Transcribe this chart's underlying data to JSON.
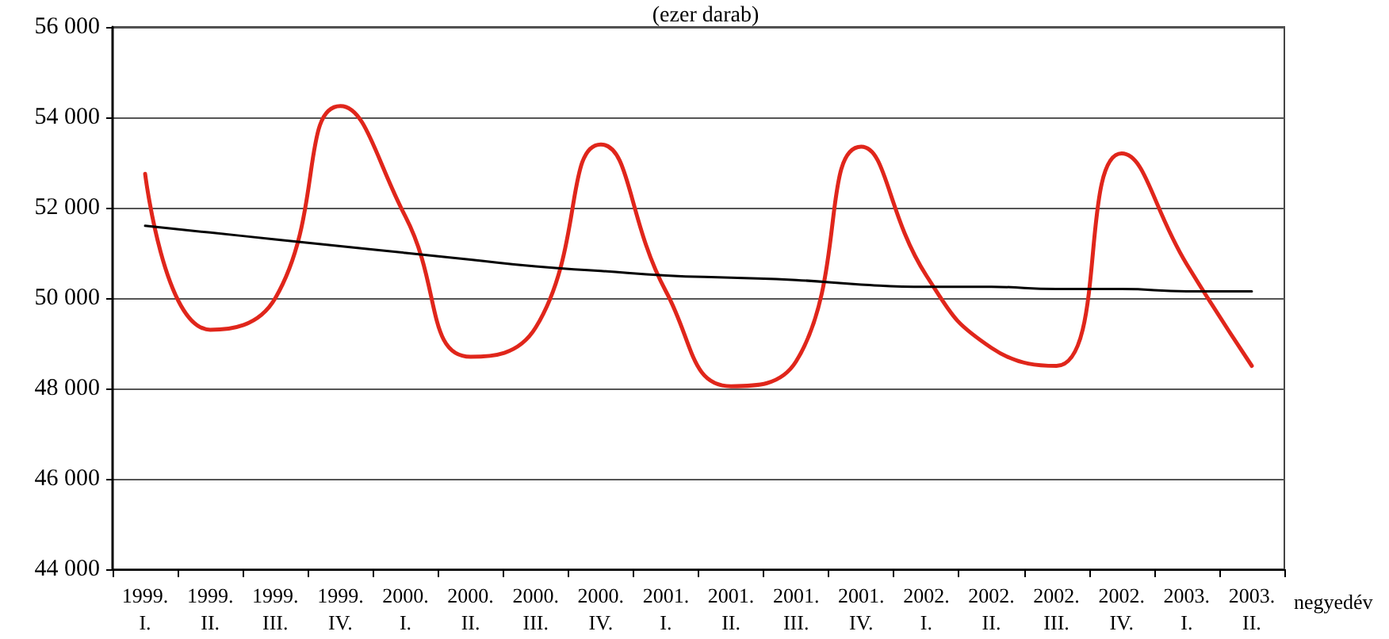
{
  "chart_data": {
    "type": "line",
    "subtitle": "(ezer darab)",
    "xlabel": "negyedév",
    "categories": [
      "1999.\nI.",
      "1999.\nII.",
      "1999.\nIII.",
      "1999.\nIV.",
      "2000.\nI.",
      "2000.\nII.",
      "2000.\nIII.",
      "2000.\nIV.",
      "2001.\nI.",
      "2001.\nII.",
      "2001.\nIII.",
      "2001.\nIV.",
      "2002.\nI.",
      "2002.\nII.",
      "2002.\nIII.",
      "2002.\nIV.",
      "2003.\nI.",
      "2003.\nII."
    ],
    "series": [
      {
        "color": "#e0261b",
        "values": [
          52750,
          49300,
          50000,
          54250,
          51800,
          48700,
          49350,
          53400,
          50150,
          48050,
          48600,
          53350,
          50500,
          48900,
          48500,
          53200,
          50750,
          48500
        ]
      },
      {
        "color": "#000000",
        "values": [
          51600,
          51450,
          51300,
          51150,
          51000,
          50850,
          50700,
          50600,
          50500,
          50450,
          50400,
          50300,
          50250,
          50250,
          50200,
          50200,
          50150,
          50150
        ]
      }
    ],
    "ylim": [
      44000,
      56000
    ],
    "yticks": [
      {
        "value": 44000,
        "label": "44 000"
      },
      {
        "value": 46000,
        "label": "46 000"
      },
      {
        "value": 48000,
        "label": "48 000"
      },
      {
        "value": 50000,
        "label": "50 000"
      },
      {
        "value": 52000,
        "label": "52 000"
      },
      {
        "value": 54000,
        "label": "54 000"
      },
      {
        "value": 56000,
        "label": "56 000"
      }
    ],
    "grid": "y",
    "marker": "none",
    "line_style": "solid"
  }
}
